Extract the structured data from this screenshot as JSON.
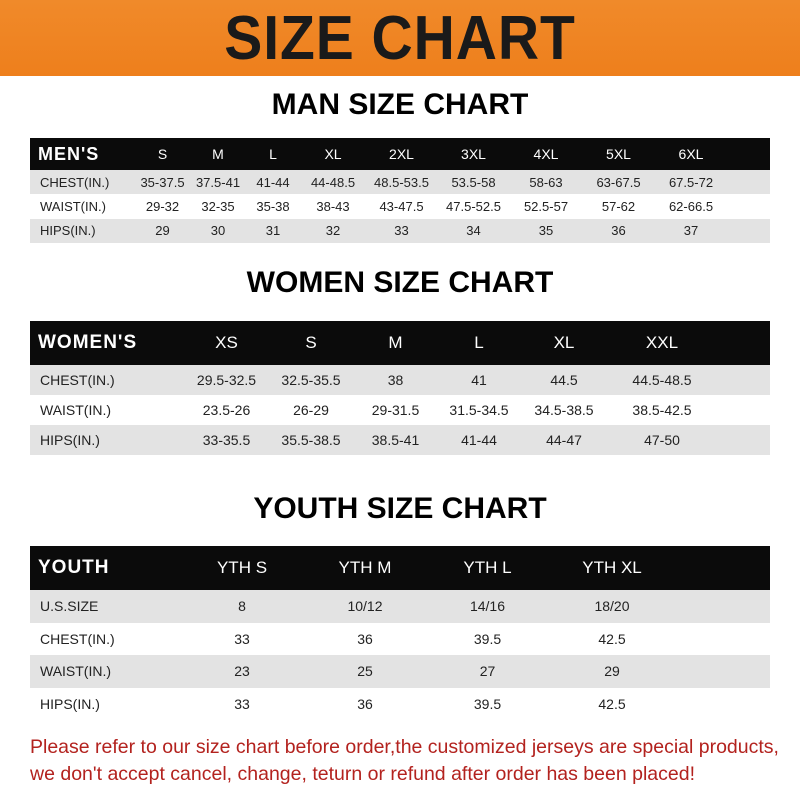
{
  "banner_title": "SIZE CHART",
  "colors": {
    "banner": "#ee7f1c",
    "header_row": "#0b0b0b",
    "stripe": "#e3e3e3",
    "note": "#b3221e"
  },
  "men": {
    "title": "MAN SIZE CHART",
    "header": [
      "MEN'S",
      "S",
      "M",
      "L",
      "XL",
      "2XL",
      "3XL",
      "4XL",
      "5XL",
      "6XL"
    ],
    "rows": [
      [
        "CHEST(IN.)",
        "35-37.5",
        "37.5-41",
        "41-44",
        "44-48.5",
        "48.5-53.5",
        "53.5-58",
        "58-63",
        "63-67.5",
        "67.5-72"
      ],
      [
        "WAIST(IN.)",
        "29-32",
        "32-35",
        "35-38",
        "38-43",
        "43-47.5",
        "47.5-52.5",
        "52.5-57",
        "57-62",
        "62-66.5"
      ],
      [
        "HIPS(IN.)",
        "29",
        "30",
        "31",
        "32",
        "33",
        "34",
        "35",
        "36",
        "37"
      ]
    ]
  },
  "women": {
    "title": "WOMEN SIZE CHART",
    "header": [
      "WOMEN'S",
      "XS",
      "S",
      "M",
      "L",
      "XL",
      "XXL"
    ],
    "rows": [
      [
        "CHEST(IN.)",
        "29.5-32.5",
        "32.5-35.5",
        "38",
        "41",
        "44.5",
        "44.5-48.5"
      ],
      [
        "WAIST(IN.)",
        "23.5-26",
        "26-29",
        "29-31.5",
        "31.5-34.5",
        "34.5-38.5",
        "38.5-42.5"
      ],
      [
        "HIPS(IN.)",
        "33-35.5",
        "35.5-38.5",
        "38.5-41",
        "41-44",
        "44-47",
        "47-50"
      ]
    ]
  },
  "youth": {
    "title": "YOUTH SIZE CHART",
    "header": [
      "YOUTH",
      "YTH S",
      "YTH M",
      "YTH L",
      "YTH XL"
    ],
    "rows": [
      [
        "U.S.SIZE",
        "8",
        "10/12",
        "14/16",
        "18/20"
      ],
      [
        "CHEST(IN.)",
        "33",
        "36",
        "39.5",
        "42.5"
      ],
      [
        "WAIST(IN.)",
        "23",
        "25",
        "27",
        "29"
      ],
      [
        "HIPS(IN.)",
        "33",
        "36",
        "39.5",
        "42.5"
      ]
    ]
  },
  "note": {
    "line1": "Please refer to our size chart before order,the customized jerseys are special products,",
    "line2": "we don't accept cancel, change, teturn or refund after order has been placed!"
  }
}
